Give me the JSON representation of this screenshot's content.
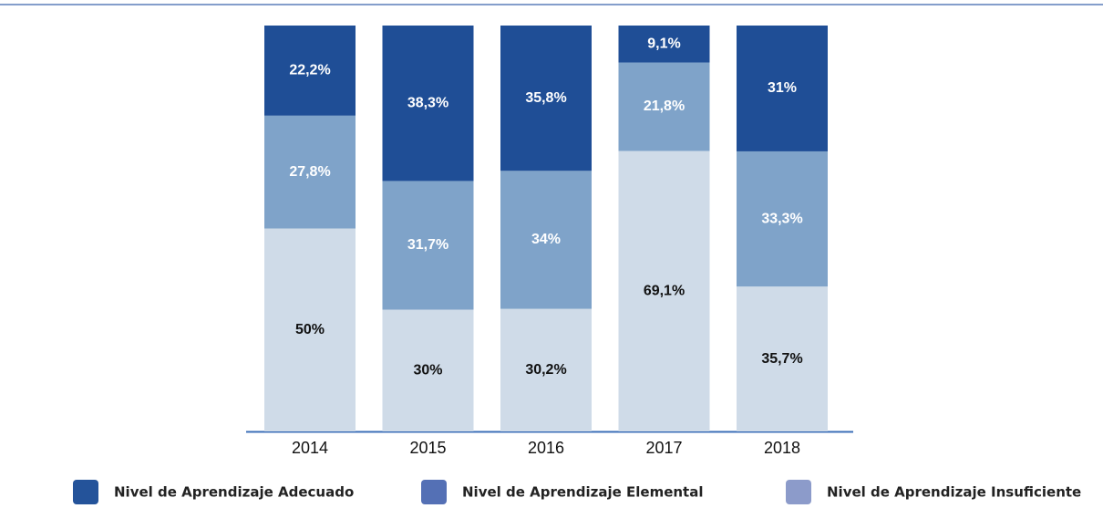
{
  "chart_data": {
    "type": "stacked_bar",
    "categories": [
      "2014",
      "2015",
      "2016",
      "2017",
      "2018"
    ],
    "ylim": [
      0,
      100
    ],
    "series": [
      {
        "name": "Nivel de Aprendizaje Adecuado",
        "color": "#1f4e96",
        "legend_color": "#24539a",
        "label_color": "#ffffff",
        "values": [
          22.2,
          38.3,
          35.8,
          9.1,
          31
        ],
        "value_labels": [
          "22,2%",
          "38,3%",
          "35,8%",
          "9,1%",
          "31%"
        ]
      },
      {
        "name": "Nivel de Aprendizaje Elemental",
        "color": "#7fa3c9",
        "legend_color": "#5470b5",
        "label_color": "#ffffff",
        "values": [
          27.8,
          31.7,
          34,
          21.8,
          33.3
        ],
        "value_labels": [
          "27,8%",
          "31,7%",
          "34%",
          "21,8%",
          "33,3%"
        ]
      },
      {
        "name": "Nivel de Aprendizaje Insuficiente",
        "color": "#cfdbe8",
        "legend_color": "#8c9bca",
        "label_color": "#111111",
        "values": [
          50,
          30,
          30.2,
          69.1,
          35.7
        ],
        "value_labels": [
          "50%",
          "30%",
          "30,2%",
          "69,1%",
          "35,7%"
        ]
      }
    ]
  }
}
